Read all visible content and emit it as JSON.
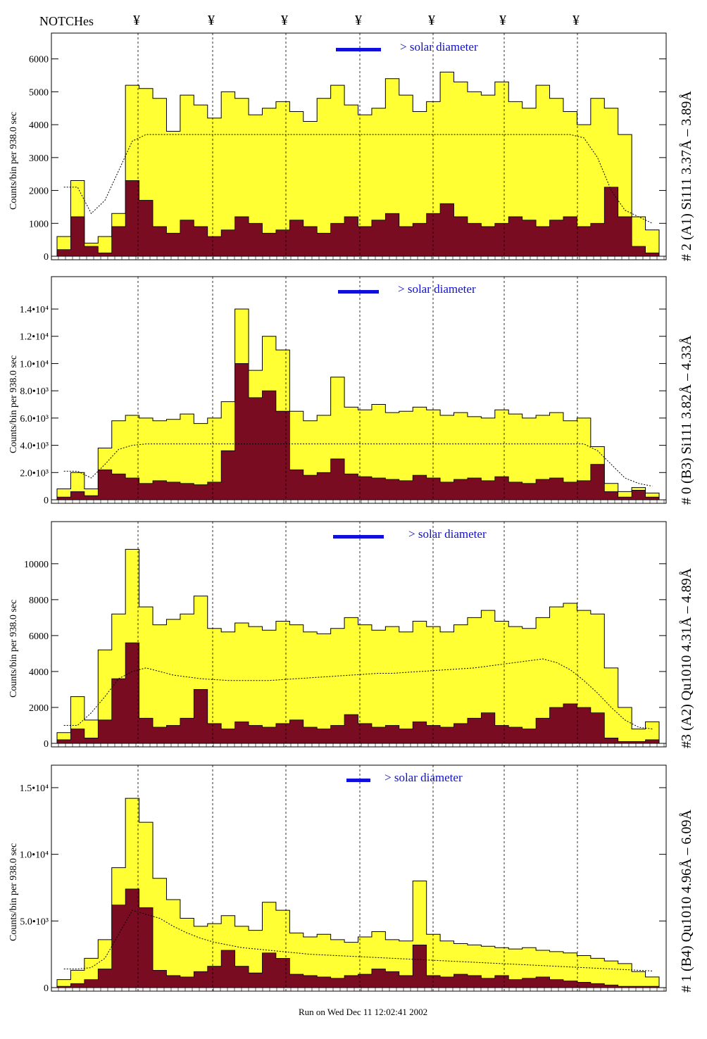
{
  "header": {
    "notches_label": "NOTCHes",
    "notch_glyph": "¥"
  },
  "footer": {
    "run_text": "Run on Wed Dec 11 12:02:41 2002"
  },
  "colors": {
    "outer": "#ffff33",
    "inner": "#7a0c22",
    "legend": "#1010dd",
    "fit": "#000000"
  },
  "chart_data": [
    {
      "type": "area",
      "panel_title": "# 2 (A1) Si111  3.37Å – 3.89Å",
      "ylabel": "Counts/bin per    938.0 sec",
      "legend_text": "> solar diameter",
      "ylim": [
        0,
        6400
      ],
      "yticks": [
        "0",
        "1000",
        "2000",
        "3000",
        "4000",
        "5000",
        "6000"
      ],
      "ytick_values": [
        0,
        1000,
        2000,
        3000,
        4000,
        5000,
        6000
      ],
      "outer_envelope": [
        600,
        2300,
        400,
        600,
        1300,
        5200,
        5100,
        4800,
        3800,
        4900,
        4600,
        4200,
        5000,
        4800,
        4300,
        4500,
        4700,
        4400,
        4100,
        4800,
        5200,
        4600,
        4300,
        4500,
        5400,
        4900,
        4400,
        4700,
        5600,
        5300,
        5000,
        4900,
        5300,
        4700,
        4500,
        5200,
        4800,
        4400,
        4000,
        4800,
        4500,
        3700,
        1200,
        800
      ],
      "inner_envelope": [
        200,
        1200,
        300,
        100,
        900,
        2300,
        1700,
        900,
        700,
        1100,
        900,
        600,
        800,
        1200,
        1000,
        700,
        800,
        1100,
        900,
        700,
        1000,
        1200,
        900,
        1100,
        1300,
        900,
        1000,
        1300,
        1600,
        1200,
        1000,
        900,
        1000,
        1200,
        1100,
        900,
        1100,
        1200,
        900,
        1000,
        2100,
        1200,
        300,
        100
      ],
      "fit_curve": [
        2100,
        2100,
        1300,
        1700,
        2600,
        3500,
        3700,
        3700,
        3700,
        3700,
        3700,
        3700,
        3700,
        3700,
        3700,
        3700,
        3700,
        3700,
        3700,
        3700,
        3700,
        3700,
        3700,
        3700,
        3700,
        3700,
        3700,
        3700,
        3700,
        3700,
        3700,
        3700,
        3700,
        3700,
        3700,
        3700,
        3700,
        3700,
        3600,
        3000,
        2000,
        1400,
        1200,
        1000
      ]
    },
    {
      "type": "area",
      "panel_title": "# 0 (B3) Si111  3.82Å – 4.33Å",
      "ylabel": "Counts/bin per    938.0 sec",
      "legend_text": "> solar diameter",
      "ylim": [
        0,
        15500
      ],
      "yticks": [
        "0",
        "2.0•10³",
        "4.0•10³",
        "6.0•10³",
        "8.0•10³",
        "1.0•10⁴",
        "1.2•10⁴",
        "1.4•10⁴"
      ],
      "ytick_values": [
        0,
        2000,
        4000,
        6000,
        8000,
        10000,
        12000,
        14000
      ],
      "outer_envelope": [
        800,
        2000,
        800,
        3800,
        5800,
        6200,
        6000,
        5800,
        5900,
        6300,
        5600,
        6000,
        7200,
        14000,
        9500,
        12000,
        11000,
        6500,
        5800,
        6200,
        9000,
        6800,
        6600,
        7000,
        6400,
        6500,
        6800,
        6600,
        6200,
        6400,
        6100,
        6000,
        6600,
        6300,
        6000,
        6200,
        6400,
        5800,
        6000,
        3900,
        1200,
        600,
        900,
        500
      ],
      "inner_envelope": [
        200,
        600,
        300,
        2200,
        1900,
        1600,
        1200,
        1400,
        1300,
        1200,
        1100,
        1300,
        3600,
        10000,
        7500,
        8000,
        6500,
        2200,
        1800,
        2000,
        3000,
        1900,
        1700,
        1600,
        1500,
        1400,
        1800,
        1600,
        1300,
        1500,
        1600,
        1400,
        1700,
        1300,
        1200,
        1500,
        1600,
        1300,
        1400,
        2600,
        600,
        200,
        700,
        200
      ],
      "fit_curve": [
        2100,
        2100,
        1600,
        2600,
        3700,
        4000,
        4100,
        4100,
        4100,
        4100,
        4100,
        4100,
        4100,
        4100,
        4100,
        4100,
        4100,
        4100,
        4100,
        4100,
        4100,
        4100,
        4100,
        4100,
        4100,
        4100,
        4100,
        4100,
        4100,
        4100,
        4100,
        4100,
        4100,
        4100,
        4100,
        4100,
        4100,
        4100,
        4100,
        3600,
        2600,
        1600,
        1200,
        1000
      ]
    },
    {
      "type": "area",
      "panel_title": "#3 (A2) Qu1010  4.31Å – 4.89Å",
      "ylabel": "Counts/bin per    938.0 sec",
      "legend_text": "> solar diameter",
      "ylim": [
        0,
        11600
      ],
      "yticks": [
        "0",
        "2000",
        "4000",
        "6000",
        "8000",
        "10000"
      ],
      "ytick_values": [
        0,
        2000,
        4000,
        6000,
        8000,
        10000
      ],
      "outer_envelope": [
        600,
        2600,
        1300,
        5200,
        7200,
        10800,
        7600,
        6600,
        6900,
        7200,
        8200,
        6400,
        6200,
        6700,
        6500,
        6300,
        6800,
        6600,
        6200,
        6100,
        6400,
        7000,
        6600,
        6300,
        6500,
        6200,
        6800,
        6500,
        6200,
        6600,
        7000,
        7400,
        6800,
        6500,
        6400,
        7000,
        7600,
        7800,
        7400,
        7200,
        4200,
        2000,
        800,
        1200
      ],
      "inner_envelope": [
        200,
        800,
        300,
        1300,
        3600,
        5600,
        1400,
        900,
        1000,
        1400,
        3000,
        1100,
        800,
        1200,
        1000,
        900,
        1100,
        1300,
        900,
        800,
        1000,
        1600,
        1100,
        900,
        1000,
        800,
        1200,
        1000,
        900,
        1100,
        1400,
        1700,
        1000,
        900,
        800,
        1400,
        2000,
        2200,
        2000,
        1700,
        300,
        100,
        100,
        200
      ],
      "fit_curve": [
        1000,
        1000,
        1700,
        2600,
        3600,
        4000,
        4200,
        4000,
        3800,
        3700,
        3600,
        3550,
        3500,
        3500,
        3500,
        3500,
        3550,
        3600,
        3650,
        3700,
        3750,
        3800,
        3850,
        3900,
        3900,
        3950,
        4000,
        4050,
        4100,
        4150,
        4200,
        4300,
        4400,
        4500,
        4600,
        4700,
        4500,
        4100,
        3500,
        2800,
        2000,
        1300,
        900,
        800
      ]
    },
    {
      "type": "area",
      "panel_title": "# 1 (B4) Qu1010 4.96Å – 6.09Å",
      "ylabel": "Counts/bin per    938.0 sec",
      "legend_text": "> solar diameter",
      "ylim": [
        0,
        16000
      ],
      "yticks": [
        "0",
        "5.0•10³",
        "1.0•10⁴",
        "1.5•10⁴"
      ],
      "ytick_values": [
        0,
        5000,
        10000,
        15000
      ],
      "outer_envelope": [
        600,
        1300,
        2200,
        3600,
        9000,
        14200,
        12400,
        8200,
        6600,
        5200,
        4600,
        4800,
        5400,
        4600,
        4300,
        6400,
        5800,
        4100,
        3800,
        4000,
        3600,
        3400,
        3800,
        4200,
        3600,
        3500,
        8000,
        4000,
        3500,
        3300,
        3200,
        3100,
        3000,
        2900,
        3000,
        2800,
        2700,
        2600,
        2400,
        2200,
        2000,
        1800,
        1200,
        800
      ],
      "inner_envelope": [
        100,
        300,
        600,
        1400,
        6200,
        7400,
        6000,
        1300,
        900,
        800,
        1200,
        1600,
        2800,
        1600,
        1100,
        2600,
        2200,
        1000,
        900,
        800,
        700,
        900,
        1000,
        1400,
        1200,
        900,
        3200,
        900,
        800,
        1000,
        900,
        700,
        900,
        600,
        700,
        800,
        600,
        500,
        400,
        300,
        200,
        100,
        100,
        100
      ],
      "fit_curve": [
        1400,
        1400,
        1500,
        2200,
        4000,
        5800,
        5500,
        5200,
        4600,
        4100,
        3700,
        3400,
        3200,
        3000,
        2900,
        2800,
        2700,
        2600,
        2500,
        2450,
        2400,
        2350,
        2300,
        2250,
        2200,
        2150,
        2100,
        2050,
        2000,
        1950,
        1900,
        1850,
        1800,
        1750,
        1700,
        1650,
        1600,
        1550,
        1500,
        1450,
        1400,
        1350,
        1300,
        1250
      ]
    }
  ]
}
